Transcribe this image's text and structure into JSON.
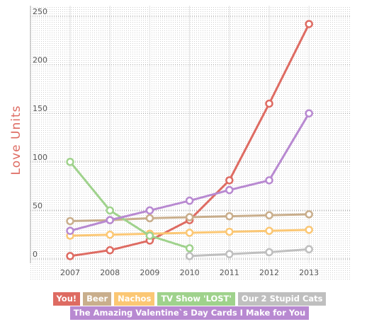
{
  "chart_data": {
    "type": "line",
    "title": "",
    "xlabel": "",
    "ylabel": "Love Units",
    "x": [
      "2007",
      "2008",
      "2009",
      "2010",
      "2011",
      "2012",
      "2013"
    ],
    "ylim": [
      0,
      250
    ],
    "yticks": [
      "0",
      "50",
      "100",
      "150",
      "200",
      "250"
    ],
    "grid": true,
    "legend_position": "bottom",
    "series": [
      {
        "name": "You!",
        "color": "#de6b62",
        "values": [
          3,
          9,
          19,
          40,
          81,
          160,
          242
        ]
      },
      {
        "name": "Beer",
        "color": "#c9ae8c",
        "values": [
          39,
          40,
          42,
          43,
          44,
          45,
          46
        ]
      },
      {
        "name": "Nachos",
        "color": "#fbc774",
        "values": [
          24,
          25,
          26,
          27,
          28,
          29,
          30
        ]
      },
      {
        "name": "TV Show 'LOST'",
        "color": "#9fd28c",
        "values": [
          100,
          50,
          24,
          11,
          null,
          null,
          null
        ]
      },
      {
        "name": "Our 2 Stupid Cats",
        "color": "#bfbfbf",
        "values": [
          null,
          null,
          null,
          3,
          5,
          7,
          10
        ]
      },
      {
        "name": "The Amazing Valentine`s Day Cards I Make for You",
        "color": "#b889d1",
        "values": [
          29,
          40,
          50,
          60,
          71,
          81,
          150
        ]
      }
    ]
  }
}
